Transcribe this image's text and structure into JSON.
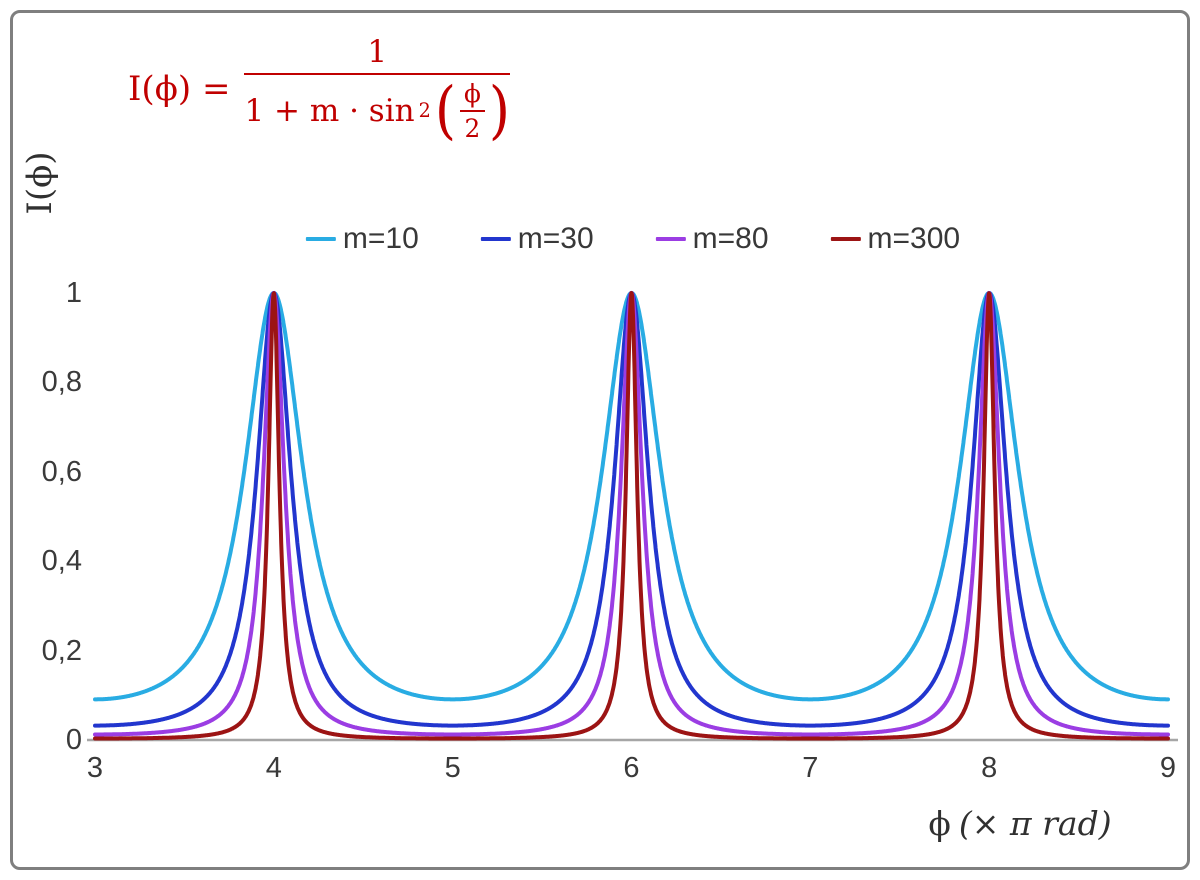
{
  "chart_data": {
    "type": "line",
    "title": "",
    "formula": {
      "text": "I(ϕ) = 1 / (1 + m·sin²(ϕ/2))",
      "lhs": "I(ϕ) =",
      "numerator": "1",
      "den_prefix": "1 + m · sin",
      "den_power": "2",
      "paren_open": "(",
      "paren_close": ")",
      "inner_numerator": "ϕ",
      "inner_denominator": "2",
      "color": "#C00000"
    },
    "function": "I(phi) = 1 / (1 + m * sin(phi/2)^2)",
    "ylabel": "I(ϕ)",
    "xlabel": {
      "symbol": "ϕ",
      "unit": "(× π rad)"
    },
    "x_axis": {
      "min": 3,
      "max": 9,
      "unit": "π rad",
      "ticks": [
        {
          "label": "3",
          "value": 3
        },
        {
          "label": "4",
          "value": 4
        },
        {
          "label": "5",
          "value": 5
        },
        {
          "label": "6",
          "value": 6
        },
        {
          "label": "7",
          "value": 7
        },
        {
          "label": "8",
          "value": 8
        },
        {
          "label": "9",
          "value": 9
        }
      ]
    },
    "y_axis": {
      "min": 0,
      "max": 1,
      "ticks": [
        {
          "label": "0",
          "value": 0
        },
        {
          "label": "0,2",
          "value": 0.2
        },
        {
          "label": "0,4",
          "value": 0.4
        },
        {
          "label": "0,6",
          "value": 0.6
        },
        {
          "label": "0,8",
          "value": 0.8
        },
        {
          "label": "1",
          "value": 1
        }
      ]
    },
    "series": [
      {
        "name": "m=10",
        "m": 10,
        "color": "#29ACE3"
      },
      {
        "name": "m=30",
        "m": 30,
        "color": "#2236CE"
      },
      {
        "name": "m=80",
        "m": 80,
        "color": "#9B3DE3"
      },
      {
        "name": "m=300",
        "m": 300,
        "color": "#9C1414"
      }
    ],
    "peaks_at_x": [
      4,
      6,
      8
    ],
    "peak_value": 1,
    "grid": false,
    "legend_position": "top-center",
    "style": {
      "axis_color": "#A6A6A6",
      "tick_text_color": "#3A3A3A",
      "border_color": "#7F7F7F",
      "background": "#FFFFFF"
    }
  }
}
